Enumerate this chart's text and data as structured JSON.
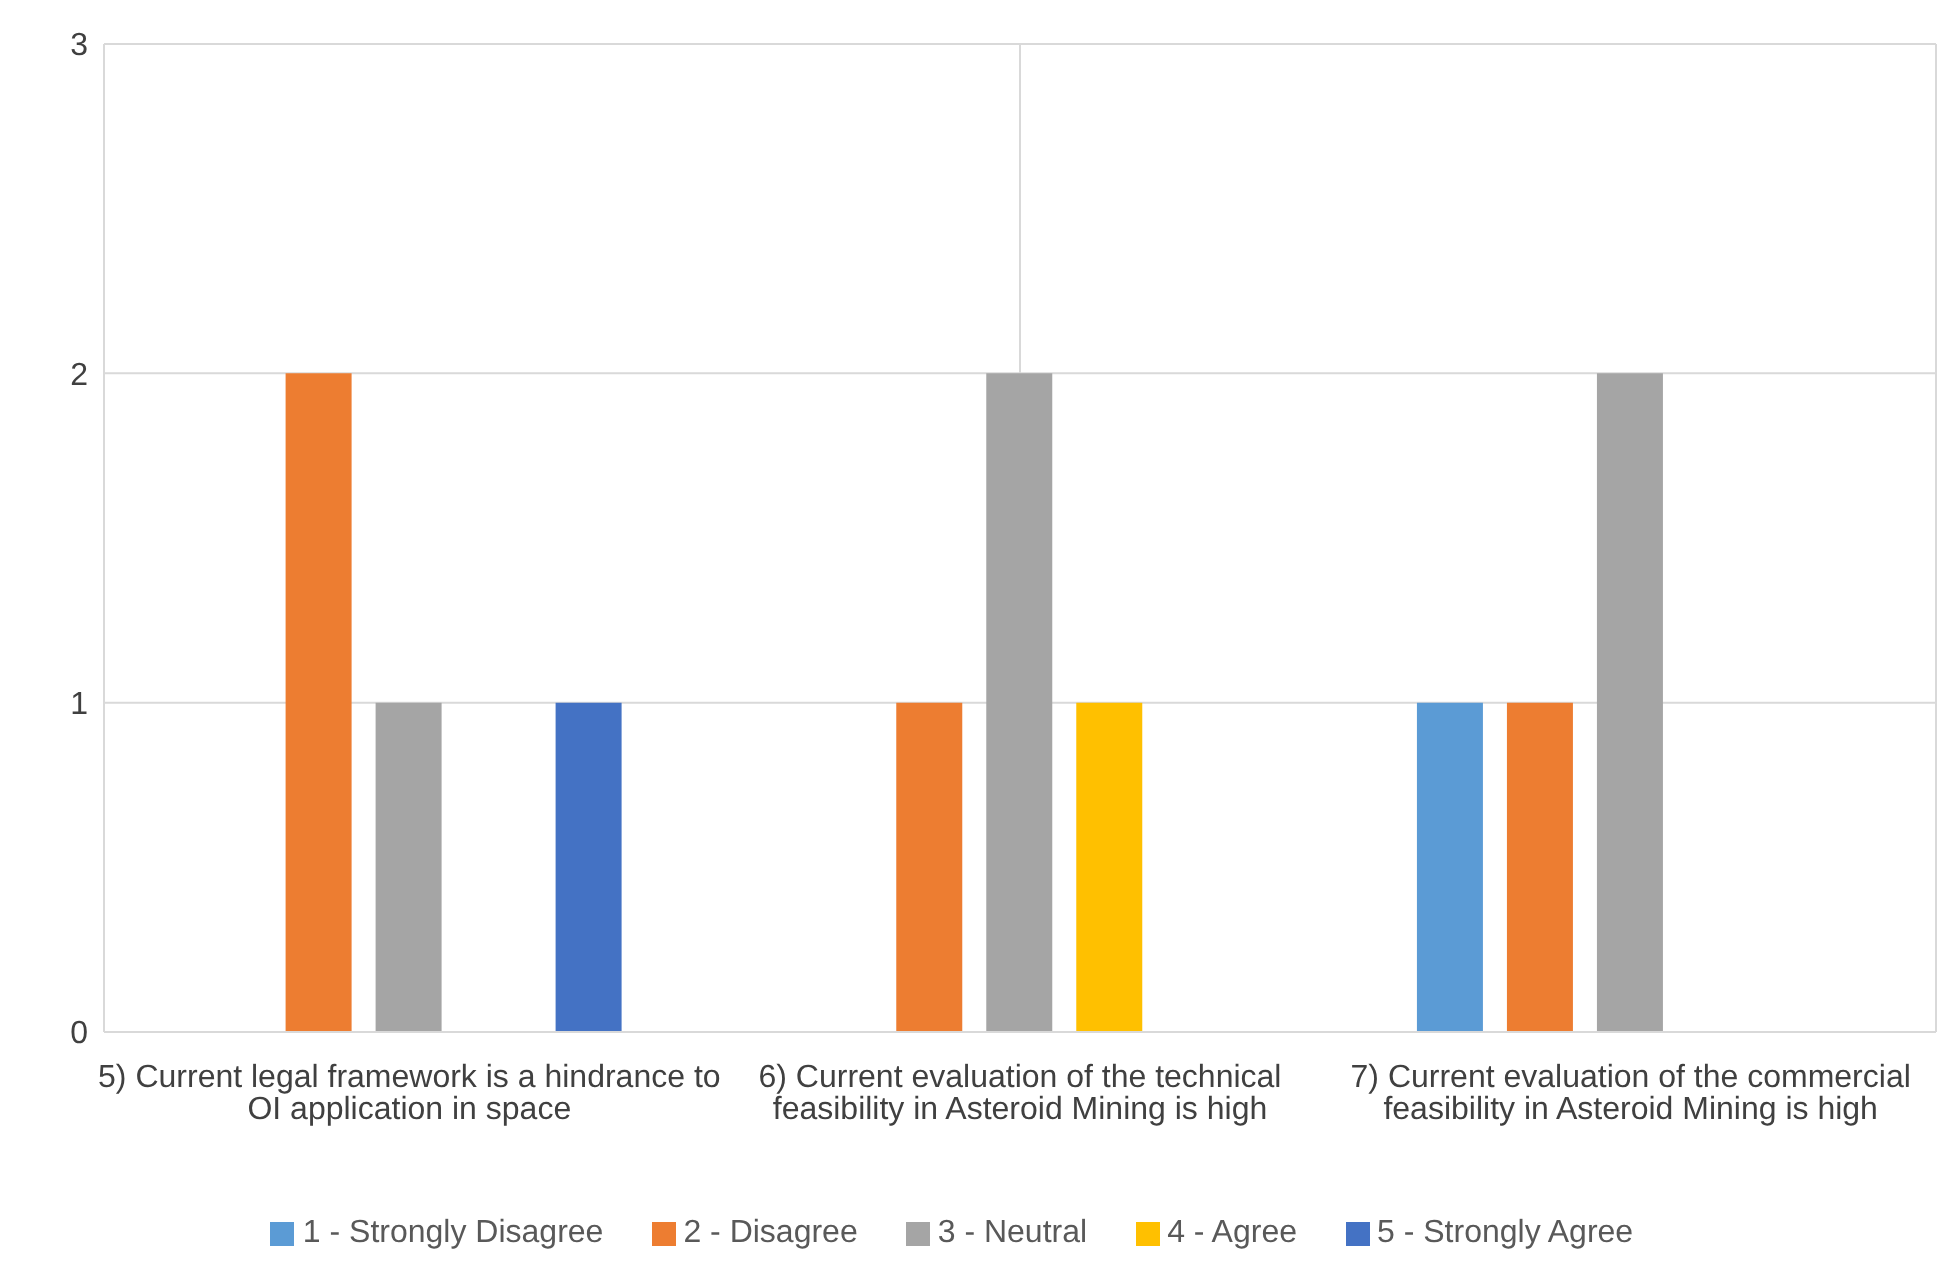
{
  "chart_data": {
    "type": "bar",
    "categories": [
      "5) Current legal framework is a hindrance to OI application in space",
      "6) Current evaluation of the technical feasibility in Asteroid Mining is high",
      "7) Current evaluation of the commercial feasibility in Asteroid Mining is high"
    ],
    "series": [
      {
        "name": "1 - Strongly Disagree",
        "color": "#5b9bd5",
        "values": [
          0,
          0,
          1
        ]
      },
      {
        "name": "2 - Disagree",
        "color": "#ed7d31",
        "values": [
          2,
          1,
          1
        ]
      },
      {
        "name": "3 - Neutral",
        "color": "#a5a5a5",
        "values": [
          1,
          2,
          2
        ]
      },
      {
        "name": "4 - Agree",
        "color": "#ffc000",
        "values": [
          0,
          1,
          0
        ]
      },
      {
        "name": "5 - Strongly Agree",
        "color": "#4472c4",
        "values": [
          1,
          0,
          0
        ]
      }
    ],
    "ylim": [
      0,
      3
    ],
    "yticks": [
      0,
      1,
      2,
      3
    ],
    "grid": true,
    "legend": "bottom"
  }
}
